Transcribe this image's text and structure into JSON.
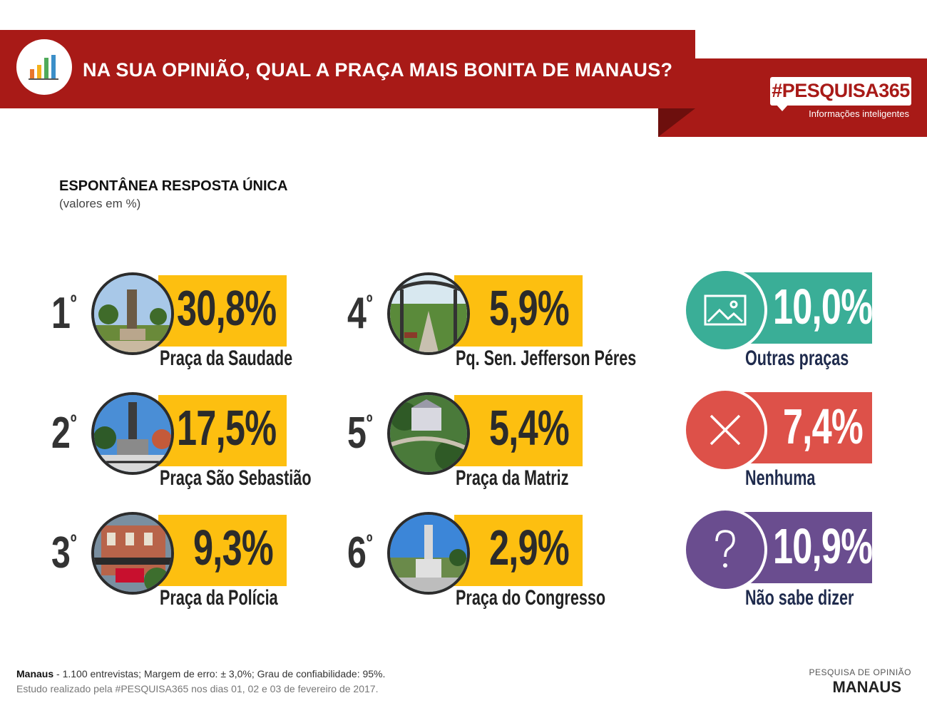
{
  "header": {
    "title": "NA SUA OPINIÃO, QUAL A PRAÇA MAIS BONITA DE MANAUS?",
    "brand_tag": "#PESQUISA365",
    "brand_sub": "Informações inteligentes"
  },
  "section": {
    "title": "ESPONTÂNEA RESPOSTA ÚNICA",
    "subtitle": "(valores em %)"
  },
  "chart_data": {
    "type": "table",
    "title": "NA SUA OPINIÃO, QUAL A PRAÇA MAIS BONITA DE MANAUS?",
    "unit": "%",
    "ranked": [
      {
        "rank": "1",
        "ordinal": "º",
        "label": "Praça da Saudade",
        "value": 30.8,
        "display": "30,8%"
      },
      {
        "rank": "2",
        "ordinal": "º",
        "label": "Praça São Sebastião",
        "value": 17.5,
        "display": "17,5%"
      },
      {
        "rank": "3",
        "ordinal": "º",
        "label": "Praça da Polícia",
        "value": 9.3,
        "display": "9,3%"
      },
      {
        "rank": "4",
        "ordinal": "º",
        "label": "Pq. Sen. Jefferson Péres",
        "value": 5.9,
        "display": "5,9%"
      },
      {
        "rank": "5",
        "ordinal": "º",
        "label": "Praça da Matriz",
        "value": 5.4,
        "display": "5,4%"
      },
      {
        "rank": "6",
        "ordinal": "º",
        "label": "Praça do Congresso",
        "value": 2.9,
        "display": "2,9%"
      }
    ],
    "others": [
      {
        "label": "Outras praças",
        "value": 10.0,
        "display": "10,0%",
        "color": "#3aae97",
        "icon": "image-icon"
      },
      {
        "label": "Nenhuma",
        "value": 7.4,
        "display": "7,4%",
        "color": "#dd5149",
        "icon": "close-icon"
      },
      {
        "label": "Não sabe dizer",
        "value": 10.9,
        "display": "10,9%",
        "color": "#6a4d8f",
        "icon": "question-icon"
      }
    ]
  },
  "colors": {
    "banner": "#a81a17",
    "highlight": "#fdbf10"
  },
  "footer": {
    "city": "Manaus",
    "details": " - 1.100 entrevistas; Margem de erro: ± 3,0%; Grau de confiabilidade: 95%.",
    "study": "Estudo realizado pela #PESQUISA365 nos dias 01, 02 e 03 de fevereiro de 2017.",
    "right_top": "PESQUISA DE OPINIÃO",
    "right_bottom": "MANAUS"
  }
}
